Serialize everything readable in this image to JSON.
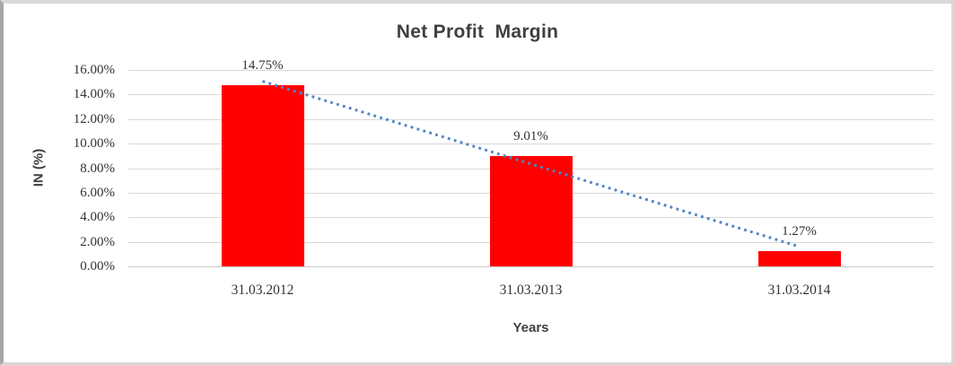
{
  "chart": {
    "title": "Net Profit  Margin",
    "y_axis_title": "IN (%)",
    "x_axis_title": "Years"
  },
  "chart_data": {
    "type": "bar",
    "title": "Net Profit  Margin",
    "xlabel": "Years",
    "ylabel": "IN (%)",
    "categories": [
      "31.03.2012",
      "31.03.2013",
      "31.03.2014"
    ],
    "values": [
      14.75,
      9.01,
      1.27
    ],
    "data_labels": [
      "14.75%",
      "9.01%",
      "1.27%"
    ],
    "y_ticks": [
      "16.00%",
      "14.00%",
      "12.00%",
      "10.00%",
      "8.00%",
      "6.00%",
      "4.00%",
      "2.00%",
      "0.00%"
    ],
    "ylim": [
      0,
      16
    ],
    "grid": true,
    "legend": false,
    "bar_color": "#ff0000",
    "gridline_color": "#d9d9d9",
    "text_color": "#333333",
    "trendline": {
      "type": "linear",
      "style": "dotted",
      "color": "#4f86c6",
      "start_value": 15.08,
      "end_value": 1.61
    }
  }
}
